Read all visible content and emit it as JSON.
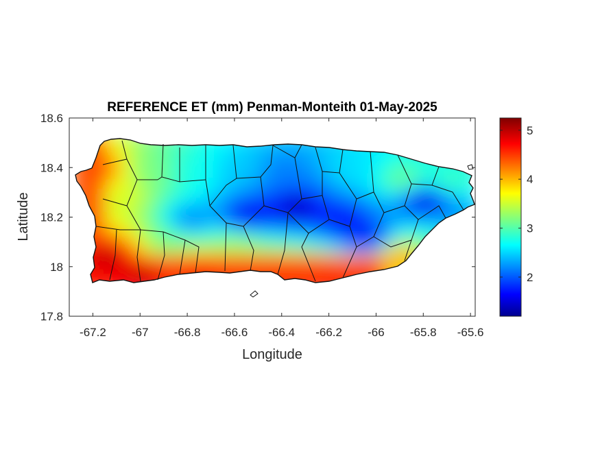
{
  "chart_data": {
    "type": "heatmap",
    "title": "REFERENCE ET (mm) Penman-Monteith 01-May-2025",
    "xlabel": "Longitude",
    "ylabel": "Latitude",
    "xlim": [
      -67.3,
      -65.58
    ],
    "ylim": [
      17.8,
      18.6
    ],
    "x_ticks": [
      -67.2,
      -67,
      -66.8,
      -66.6,
      -66.4,
      -66.2,
      -66,
      -65.8,
      -65.6
    ],
    "x_tick_labels": [
      "-67.2",
      "-67",
      "-66.8",
      "-66.6",
      "-66.4",
      "-66.2",
      "-66",
      "-65.8",
      "-65.6"
    ],
    "y_ticks": [
      17.8,
      18,
      18.2,
      18.4,
      18.6
    ],
    "y_tick_labels": [
      "17.8",
      "18",
      "18.2",
      "18.4",
      "18.6"
    ],
    "colorbar": {
      "colormap": "jet",
      "clim": [
        1.2,
        5.25
      ],
      "ticks": [
        2,
        3,
        4,
        5
      ],
      "tick_labels": [
        "2",
        "3",
        "4",
        "5"
      ]
    },
    "field_description_points": [
      {
        "lon": -67.15,
        "lat": 18.05,
        "value": 5.0
      },
      {
        "lon": -67.0,
        "lat": 17.98,
        "value": 5.0
      },
      {
        "lon": -66.75,
        "lat": 17.98,
        "value": 4.8
      },
      {
        "lon": -66.4,
        "lat": 17.97,
        "value": 4.5
      },
      {
        "lon": -66.2,
        "lat": 17.95,
        "value": 4.8
      },
      {
        "lon": -66.0,
        "lat": 18.0,
        "value": 4.0
      },
      {
        "lon": -65.9,
        "lat": 18.05,
        "value": 4.2
      },
      {
        "lon": -67.2,
        "lat": 18.4,
        "value": 4.5
      },
      {
        "lon": -67.1,
        "lat": 18.3,
        "value": 3.6
      },
      {
        "lon": -66.95,
        "lat": 18.4,
        "value": 3.2
      },
      {
        "lon": -66.8,
        "lat": 18.4,
        "value": 2.8
      },
      {
        "lon": -66.6,
        "lat": 18.4,
        "value": 2.5
      },
      {
        "lon": -66.4,
        "lat": 18.4,
        "value": 2.2
      },
      {
        "lon": -66.1,
        "lat": 18.4,
        "value": 2.6
      },
      {
        "lon": -65.9,
        "lat": 18.36,
        "value": 3.2
      },
      {
        "lon": -65.7,
        "lat": 18.35,
        "value": 3.0
      },
      {
        "lon": -66.55,
        "lat": 18.22,
        "value": 1.6
      },
      {
        "lon": -66.35,
        "lat": 18.25,
        "value": 1.4
      },
      {
        "lon": -66.15,
        "lat": 18.2,
        "value": 1.7
      },
      {
        "lon": -66.05,
        "lat": 18.12,
        "value": 1.6
      },
      {
        "lon": -65.8,
        "lat": 18.28,
        "value": 1.5
      },
      {
        "lon": -65.7,
        "lat": 18.2,
        "value": 2.3
      },
      {
        "lon": -66.8,
        "lat": 18.2,
        "value": 2.2
      },
      {
        "lon": -66.9,
        "lat": 18.1,
        "value": 3.2
      },
      {
        "lon": -66.6,
        "lat": 18.08,
        "value": 3.4
      },
      {
        "lon": -65.75,
        "lat": 18.1,
        "value": 3.0
      }
    ],
    "legend": "colorbar-right"
  }
}
